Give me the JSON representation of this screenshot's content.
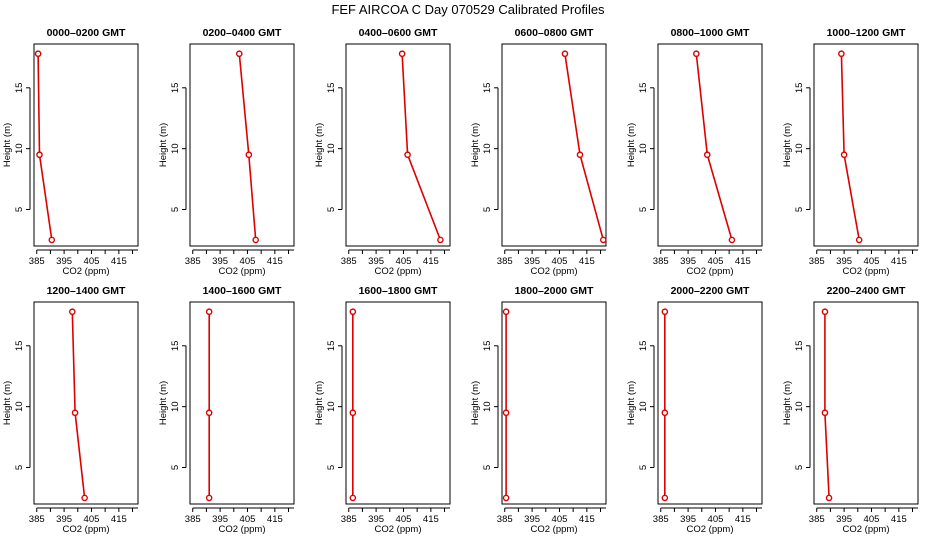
{
  "title": "FEF AIRCOA C  Day 070529  Calibrated Profiles",
  "colors": {
    "series": "#dd0000",
    "axes": "#000000",
    "background": "#ffffff"
  },
  "chart_data": [
    {
      "type": "line",
      "title": "0000–0200 GMT",
      "xlabel": "CO2 (ppm)",
      "ylabel": "Height (m)",
      "xlim": [
        384,
        422
      ],
      "ylim": [
        2,
        18.6
      ],
      "xticks": [
        385,
        395,
        405,
        415
      ],
      "yticks": [
        5,
        10,
        15
      ],
      "x": [
        385.5,
        386,
        390.5
      ],
      "y": [
        17.8,
        9.5,
        2.5
      ]
    },
    {
      "type": "line",
      "title": "0200–0400 GMT",
      "xlabel": "CO2 (ppm)",
      "ylabel": "Height (m)",
      "xlim": [
        384,
        422
      ],
      "ylim": [
        2,
        18.6
      ],
      "xticks": [
        385,
        395,
        405,
        415
      ],
      "yticks": [
        5,
        10,
        15
      ],
      "x": [
        402,
        405.5,
        408
      ],
      "y": [
        17.8,
        9.5,
        2.5
      ]
    },
    {
      "type": "line",
      "title": "0400–0600 GMT",
      "xlabel": "CO2 (ppm)",
      "ylabel": "Height (m)",
      "xlim": [
        384,
        422
      ],
      "ylim": [
        2,
        18.6
      ],
      "xticks": [
        385,
        395,
        405,
        415
      ],
      "yticks": [
        5,
        10,
        15
      ],
      "x": [
        404.5,
        406.5,
        418.5
      ],
      "y": [
        17.8,
        9.5,
        2.5
      ]
    },
    {
      "type": "line",
      "title": "0600–0800 GMT",
      "xlabel": "CO2 (ppm)",
      "ylabel": "Height (m)",
      "xlim": [
        384,
        422
      ],
      "ylim": [
        2,
        18.6
      ],
      "xticks": [
        385,
        395,
        405,
        415
      ],
      "yticks": [
        5,
        10,
        15
      ],
      "x": [
        407,
        412.5,
        421
      ],
      "y": [
        17.8,
        9.5,
        2.5
      ]
    },
    {
      "type": "line",
      "title": "0800–1000 GMT",
      "xlabel": "CO2 (ppm)",
      "ylabel": "Height (m)",
      "xlim": [
        384,
        422
      ],
      "ylim": [
        2,
        18.6
      ],
      "xticks": [
        385,
        395,
        405,
        415
      ],
      "yticks": [
        5,
        10,
        15
      ],
      "x": [
        398,
        402,
        411
      ],
      "y": [
        17.8,
        9.5,
        2.5
      ]
    },
    {
      "type": "line",
      "title": "1000–1200 GMT",
      "xlabel": "CO2 (ppm)",
      "ylabel": "Height (m)",
      "xlim": [
        384,
        422
      ],
      "ylim": [
        2,
        18.6
      ],
      "xticks": [
        385,
        395,
        405,
        415
      ],
      "yticks": [
        5,
        10,
        15
      ],
      "x": [
        394,
        395,
        400.5
      ],
      "y": [
        17.8,
        9.5,
        2.5
      ]
    },
    {
      "type": "line",
      "title": "1200–1400 GMT",
      "xlabel": "CO2 (ppm)",
      "ylabel": "Height (m)",
      "xlim": [
        384,
        422
      ],
      "ylim": [
        2,
        18.6
      ],
      "xticks": [
        385,
        395,
        405,
        415
      ],
      "yticks": [
        5,
        10,
        15
      ],
      "x": [
        398,
        399,
        402.5
      ],
      "y": [
        17.8,
        9.5,
        2.5
      ]
    },
    {
      "type": "line",
      "title": "1400–1600 GMT",
      "xlabel": "CO2 (ppm)",
      "ylabel": "Height (m)",
      "xlim": [
        384,
        422
      ],
      "ylim": [
        2,
        18.6
      ],
      "xticks": [
        385,
        395,
        405,
        415
      ],
      "yticks": [
        5,
        10,
        15
      ],
      "x": [
        391,
        391,
        391
      ],
      "y": [
        17.8,
        9.5,
        2.5
      ]
    },
    {
      "type": "line",
      "title": "1600–1800 GMT",
      "xlabel": "CO2 (ppm)",
      "ylabel": "Height (m)",
      "xlim": [
        384,
        422
      ],
      "ylim": [
        2,
        18.6
      ],
      "xticks": [
        385,
        395,
        405,
        415
      ],
      "yticks": [
        5,
        10,
        15
      ],
      "x": [
        386.5,
        386.5,
        386.5
      ],
      "y": [
        17.8,
        9.5,
        2.5
      ]
    },
    {
      "type": "line",
      "title": "1800–2000 GMT",
      "xlabel": "CO2 (ppm)",
      "ylabel": "Height (m)",
      "xlim": [
        384,
        422
      ],
      "ylim": [
        2,
        18.6
      ],
      "xticks": [
        385,
        395,
        405,
        415
      ],
      "yticks": [
        5,
        10,
        15
      ],
      "x": [
        385.5,
        385.5,
        385.5
      ],
      "y": [
        17.8,
        9.5,
        2.5
      ]
    },
    {
      "type": "line",
      "title": "2000–2200 GMT",
      "xlabel": "CO2 (ppm)",
      "ylabel": "Height (m)",
      "xlim": [
        384,
        422
      ],
      "ylim": [
        2,
        18.6
      ],
      "xticks": [
        385,
        395,
        405,
        415
      ],
      "yticks": [
        5,
        10,
        15
      ],
      "x": [
        386.5,
        386.5,
        386.5
      ],
      "y": [
        17.8,
        9.5,
        2.5
      ]
    },
    {
      "type": "line",
      "title": "2200–2400 GMT",
      "xlabel": "CO2 (ppm)",
      "ylabel": "Height (m)",
      "xlim": [
        384,
        422
      ],
      "ylim": [
        2,
        18.6
      ],
      "xticks": [
        385,
        395,
        405,
        415
      ],
      "yticks": [
        5,
        10,
        15
      ],
      "x": [
        388,
        388,
        389.5
      ],
      "y": [
        17.8,
        9.5,
        2.5
      ]
    }
  ]
}
